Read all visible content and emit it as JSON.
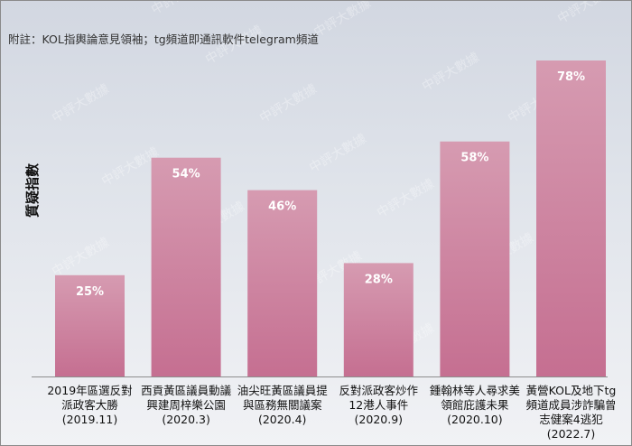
{
  "note": "附註：KOL指輿論意見領袖；tg頻道即通訊軟件telegram頻道",
  "watermark": "中評大數據",
  "colors": {
    "bar_top": "#d69bb1",
    "bar_bottom": "#c56f91",
    "baseline": "#8e8e8e"
  },
  "chart_data": {
    "type": "bar",
    "title": "",
    "xlabel": "",
    "ylabel": "質疑指數",
    "ylim": [
      0,
      100
    ],
    "grid": false,
    "categories": [
      [
        "2019年區選反對",
        "派政客大勝",
        "(2019.11)"
      ],
      [
        "西貢黃區議員動議",
        "興建周梓樂公園",
        "(2020.3)"
      ],
      [
        "油尖旺黃區議員提",
        "與區務無關議案",
        "(2020.4)"
      ],
      [
        "反對派政客炒作",
        "12港人事件",
        "(2020.9)"
      ],
      [
        "鍾翰林等人尋求美",
        "領館庇護未果",
        "(2020.10)"
      ],
      [
        "黃營KOL及地下tg",
        "頻道成員涉詐騙曾",
        "志健案4逃犯",
        "(2022.7)"
      ]
    ],
    "values": [
      25,
      54,
      46,
      28,
      58,
      78
    ],
    "value_labels": [
      "25%",
      "54%",
      "46%",
      "28%",
      "58%",
      "78%"
    ]
  }
}
